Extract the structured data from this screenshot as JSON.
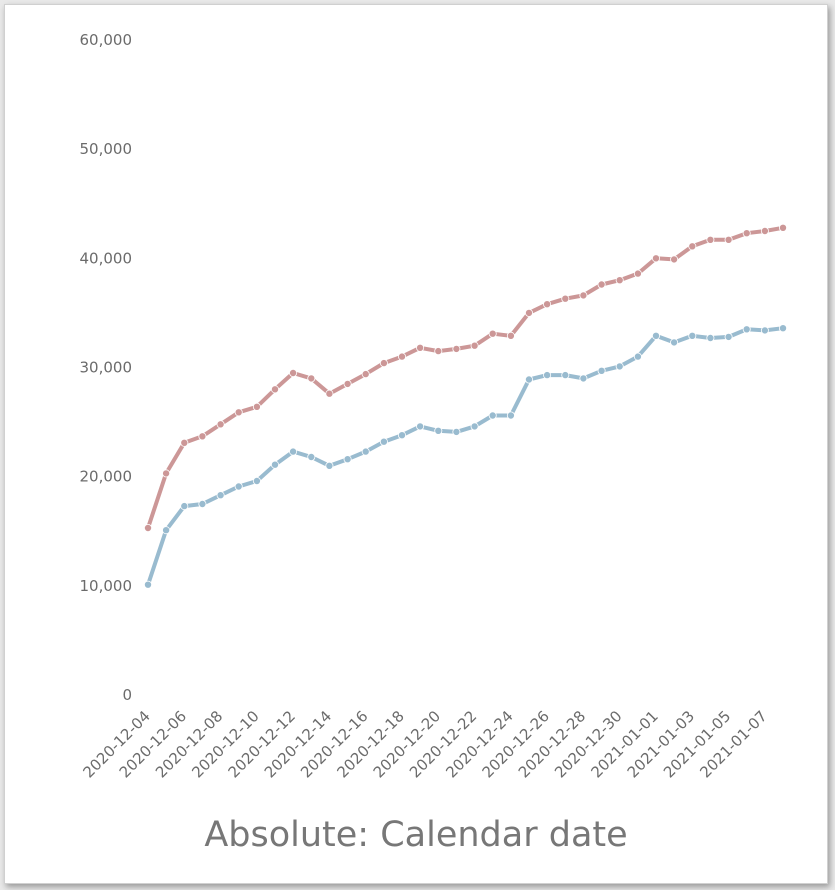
{
  "chart_data": {
    "type": "line",
    "title": "Absolute: Calendar date",
    "xlabel": "",
    "ylabel": "",
    "ylim": [
      0,
      60000
    ],
    "y_ticks": [
      0,
      10000,
      20000,
      30000,
      40000,
      50000,
      60000
    ],
    "y_tick_labels": [
      "0",
      "10,000",
      "20,000",
      "30,000",
      "40,000",
      "50,000",
      "60,000"
    ],
    "x_tick_labels": [
      "2020-12-04",
      "2020-12-06",
      "2020-12-08",
      "2020-12-10",
      "2020-12-12",
      "2020-12-14",
      "2020-12-16",
      "2020-12-18",
      "2020-12-20",
      "2020-12-22",
      "2020-12-24",
      "2020-12-26",
      "2020-12-28",
      "2020-12-30",
      "2021-01-01",
      "2021-01-03",
      "2021-01-05",
      "2021-01-07"
    ],
    "grid": false,
    "legend": "none",
    "x": [
      "2020-12-04",
      "2020-12-05",
      "2020-12-06",
      "2020-12-07",
      "2020-12-08",
      "2020-12-09",
      "2020-12-10",
      "2020-12-11",
      "2020-12-12",
      "2020-12-13",
      "2020-12-14",
      "2020-12-15",
      "2020-12-16",
      "2020-12-17",
      "2020-12-18",
      "2020-12-19",
      "2020-12-20",
      "2020-12-21",
      "2020-12-22",
      "2020-12-23",
      "2020-12-24",
      "2020-12-25",
      "2020-12-26",
      "2020-12-27",
      "2020-12-28",
      "2020-12-29",
      "2020-12-30",
      "2020-12-31",
      "2021-01-01",
      "2021-01-02",
      "2021-01-03",
      "2021-01-04",
      "2021-01-05",
      "2021-01-06",
      "2021-01-07",
      "2021-01-08"
    ],
    "series": [
      {
        "color": "#cc9797",
        "values": [
          15300,
          20300,
          23100,
          23700,
          24800,
          25900,
          26400,
          28000,
          29500,
          29000,
          27600,
          28500,
          29400,
          30400,
          31000,
          31800,
          31500,
          31700,
          32000,
          33100,
          32900,
          35000,
          35800,
          36300,
          36600,
          37600,
          38000,
          38600,
          40000,
          39900,
          41100,
          41700,
          41700,
          42300,
          42500,
          42800
        ]
      },
      {
        "color": "#99bbcf",
        "values": [
          10100,
          15100,
          17300,
          17500,
          18300,
          19100,
          19600,
          21100,
          22300,
          21800,
          21000,
          21600,
          22300,
          23200,
          23800,
          24600,
          24200,
          24100,
          24600,
          25600,
          25600,
          28900,
          29300,
          29300,
          29000,
          29700,
          30100,
          31000,
          32900,
          32300,
          32900,
          32700,
          32800,
          33500,
          33400,
          33600
        ]
      }
    ]
  }
}
